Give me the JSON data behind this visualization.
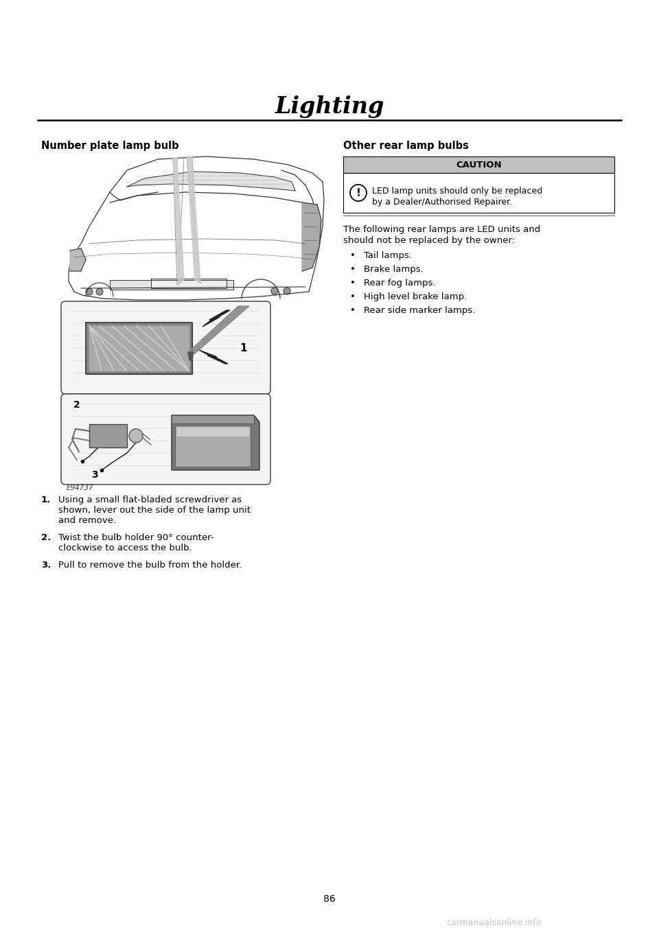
{
  "page_title": "Lighting",
  "page_number": "86",
  "background_color": "#ffffff",
  "left_section_title": "Number plate lamp bulb",
  "right_section_title": "Other rear lamp bulbs",
  "caution_title": "CAUTION",
  "caution_text_line1": "LED lamp units should only be replaced",
  "caution_text_line2": "by a Dealer/Authorised Repairer.",
  "caution_bg": "#c0c0c0",
  "intro_text_line1": "The following rear lamps are LED units and",
  "intro_text_line2": "should not be replaced by the owner:",
  "bullet_items": [
    "Tail lamps.",
    "Brake lamps.",
    "Rear fog lamps.",
    "High level brake lamp.",
    "Rear side marker lamps."
  ],
  "step1_bold": "1.",
  "step1_line1": "Using a small flat-bladed screwdriver as",
  "step1_line2": "shown, lever out the side of the lamp unit",
  "step1_line3": "and remove.",
  "step2_bold": "2.",
  "step2_line1": "Twist the bulb holder 90° counter-",
  "step2_line2": "clockwise to access the bulb.",
  "step3_bold": "3.",
  "step3_line1": "Pull to remove the bulb from the holder.",
  "image_code": "E94737",
  "watermark_text": "carmanualsonline.info"
}
